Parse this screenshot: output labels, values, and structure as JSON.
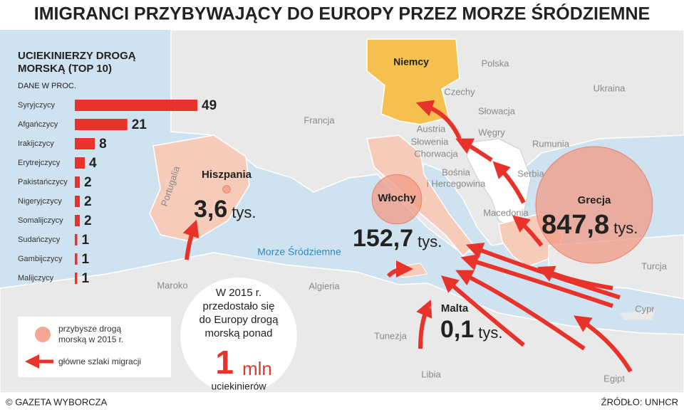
{
  "title": "IMIGRANCI PRZYBYWAJĄCY DO EUROPY PRZEZ MORZE ŚRÓDZIEMNE",
  "chart_data": {
    "type": "bar",
    "title": "UCIEKINIERZY DROGĄ MORSKĄ (TOP 10)",
    "subtitle": "DANE W PROC.",
    "categories": [
      "Syryjczycy",
      "Afgańczycy",
      "Irakijczycy",
      "Erytrejczycy",
      "Pakistańczycy",
      "Nigeryjczycy",
      "Somalijczycy",
      "Sudańczycy",
      "Gambijczycy",
      "Malijczycy"
    ],
    "values": [
      49,
      21,
      8,
      4,
      2,
      2,
      2,
      1,
      1,
      1
    ],
    "color": "#e8332a"
  },
  "map": {
    "countries": [
      "Niemcy",
      "Polska",
      "Czechy",
      "Ukraina",
      "Słowacja",
      "Francja",
      "Austria",
      "Węgry",
      "Rumunia",
      "Słowenia",
      "Chorwacja",
      "Bośnia",
      "i Hercegowina",
      "Serbia",
      "Macedonia",
      "Portugalia",
      "Turcja",
      "Cypr",
      "Maroko",
      "Algieria",
      "Tunezja",
      "Libia",
      "Egipt"
    ],
    "sea": "Morze Śródziemne",
    "arrivals": [
      {
        "name": "Hiszpania",
        "value": 3.6,
        "label": "3,6",
        "unit": "tys."
      },
      {
        "name": "Włochy",
        "value": 152.7,
        "label": "152,7",
        "unit": "tys."
      },
      {
        "name": "Grecja",
        "value": 847.8,
        "label": "847,8",
        "unit": "tys."
      },
      {
        "name": "Malta",
        "value": 0.1,
        "label": "0,1",
        "unit": "tys."
      }
    ]
  },
  "info": {
    "lines": [
      "W 2015 r.",
      "przedostało się",
      "do Europy drogą",
      "morską ponad"
    ],
    "number": "1",
    "unit": "mln",
    "after": "uciekinierów"
  },
  "legend": {
    "circle": [
      "przybysze drogą",
      "morską w 2015 r."
    ],
    "arrow": "główne szlaki migracji"
  },
  "footer": {
    "left": "© GAZETA WYBORCZA",
    "right": "ŹRÓDŁO: UNHCR"
  }
}
